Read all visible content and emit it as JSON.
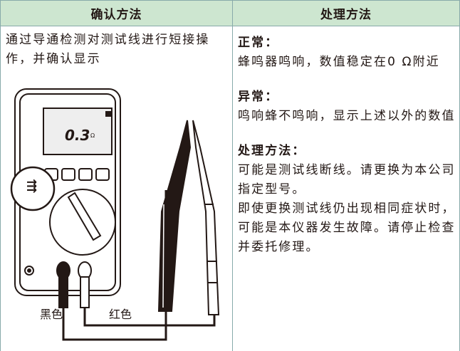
{
  "table": {
    "headers": [
      "确认方法",
      "处理方法"
    ],
    "check_method": {
      "text": "通过导通检测对测试线进行短接操作，并确认显示",
      "figure": {
        "display": "0.3",
        "unit": "Ω",
        "labels": [
          "黑色",
          "红色"
        ]
      }
    },
    "handling": [
      {
        "heading": "正常：",
        "text": "蜂鸣器鸣响，数值稳定在0 Ω附近"
      },
      {
        "heading": "异常：",
        "text": "鸣响蜂不鸣响，显示上述以外的数值"
      },
      {
        "heading": "处理方法：",
        "paragraphs": [
          "可能是测试线断线。请更换为本公司指定型号。",
          "即使更换测试线仍出现相同症状时，可能是本仪器发生故障。请停止检查并委托修理。"
        ]
      }
    ]
  }
}
